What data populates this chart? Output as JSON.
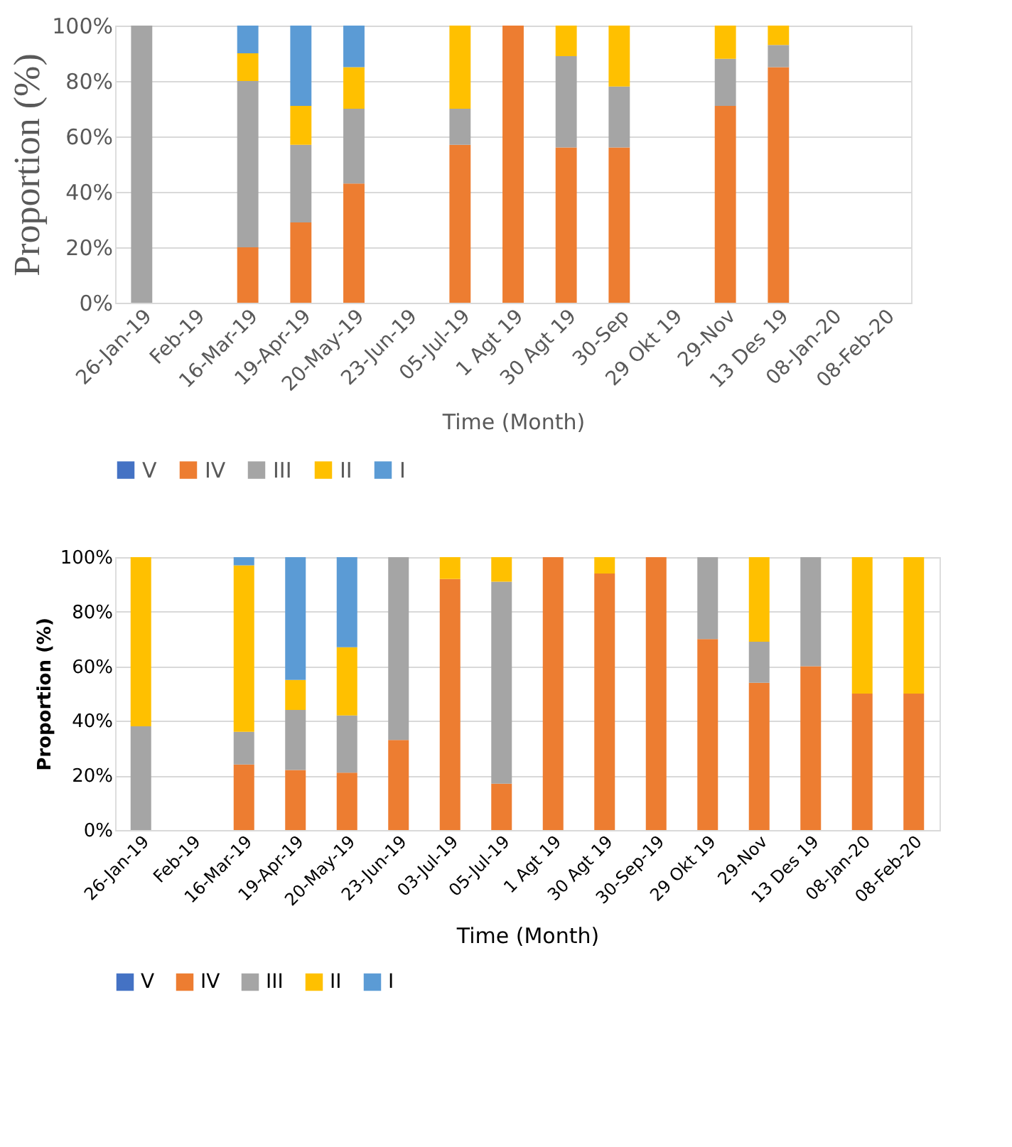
{
  "chart_data": [
    {
      "type": "bar",
      "stacked": true,
      "xlabel": "Time (Month)",
      "ylabel": "Proportion (%)",
      "legend": "bottom",
      "grid": "y",
      "categories": [
        "26-Jan-19",
        "Feb-19",
        "16-Mar-19",
        "19-Apr-19",
        "20-May-19",
        "23-Jun-19",
        "05-Jul-19",
        "1 Agt 19",
        "30 Agt 19",
        "30-Sep",
        "29 Okt 19",
        "29-Nov",
        "13 Des 19",
        "08-Jan-20",
        "08-Feb-20"
      ],
      "ylim": [
        0,
        100
      ],
      "yticks": [
        {
          "value": 0,
          "label": "0%"
        },
        {
          "value": 20,
          "label": "20%"
        },
        {
          "value": 40,
          "label": "40%"
        },
        {
          "value": 60,
          "label": "60%"
        },
        {
          "value": 80,
          "label": "80%"
        },
        {
          "value": 100,
          "label": "100%"
        }
      ],
      "series": [
        {
          "name": "V",
          "color": "#4472c4",
          "values": [
            null,
            null,
            null,
            null,
            null,
            null,
            null,
            null,
            null,
            null,
            null,
            null,
            null,
            null,
            null
          ]
        },
        {
          "name": "IV",
          "color": "#ed7d31",
          "values": [
            null,
            null,
            20,
            29,
            43,
            null,
            57,
            100,
            56,
            56,
            null,
            71,
            85,
            null,
            null
          ]
        },
        {
          "name": "III",
          "color": "#a5a5a5",
          "values": [
            100,
            null,
            60,
            28,
            27,
            null,
            13,
            null,
            33,
            22,
            null,
            17,
            8,
            null,
            null
          ]
        },
        {
          "name": "II",
          "color": "#ffc000",
          "values": [
            null,
            null,
            10,
            14,
            15,
            null,
            30,
            null,
            11,
            22,
            null,
            12,
            7,
            null,
            null
          ]
        },
        {
          "name": "I",
          "color": "#5b9bd5",
          "values": [
            null,
            null,
            10,
            29,
            15,
            null,
            null,
            null,
            null,
            null,
            null,
            null,
            null,
            null,
            null
          ]
        }
      ]
    },
    {
      "type": "bar",
      "stacked": true,
      "xlabel": "Time (Month)",
      "ylabel": "Proportion (%)",
      "legend": "bottom",
      "grid": "y",
      "categories": [
        "26-Jan-19",
        "Feb-19",
        "16-Mar-19",
        "19-Apr-19",
        "20-May-19",
        "23-Jun-19",
        "03-Jul-19",
        "05-Jul-19",
        "1 Agt 19",
        "30 Agt 19",
        "30-Sep-19",
        "29 Okt 19",
        "29-Nov",
        "13 Des 19",
        "08-Jan-20",
        "08-Feb-20"
      ],
      "ylim": [
        0,
        100
      ],
      "yticks": [
        {
          "value": 0,
          "label": "0%"
        },
        {
          "value": 20,
          "label": "20%"
        },
        {
          "value": 40,
          "label": "40%"
        },
        {
          "value": 60,
          "label": "60%"
        },
        {
          "value": 80,
          "label": "80%"
        },
        {
          "value": 100,
          "label": "100%"
        }
      ],
      "series": [
        {
          "name": "V",
          "color": "#4472c4",
          "values": [
            null,
            null,
            null,
            null,
            null,
            null,
            null,
            null,
            null,
            null,
            null,
            null,
            null,
            null,
            null,
            null
          ]
        },
        {
          "name": "IV",
          "color": "#ed7d31",
          "values": [
            null,
            null,
            24,
            22,
            21,
            33,
            92,
            17,
            100,
            94,
            100,
            70,
            54,
            60,
            50,
            50
          ]
        },
        {
          "name": "III",
          "color": "#a5a5a5",
          "values": [
            38,
            null,
            12,
            22,
            21,
            67,
            null,
            74,
            null,
            null,
            null,
            30,
            15,
            40,
            null,
            null
          ]
        },
        {
          "name": "II",
          "color": "#ffc000",
          "values": [
            62,
            null,
            61,
            11,
            25,
            null,
            8,
            9,
            null,
            6,
            null,
            null,
            31,
            null,
            50,
            50
          ]
        },
        {
          "name": "I",
          "color": "#5b9bd5",
          "values": [
            null,
            null,
            3,
            45,
            33,
            null,
            null,
            null,
            null,
            null,
            null,
            null,
            null,
            null,
            null,
            null
          ]
        }
      ]
    }
  ]
}
